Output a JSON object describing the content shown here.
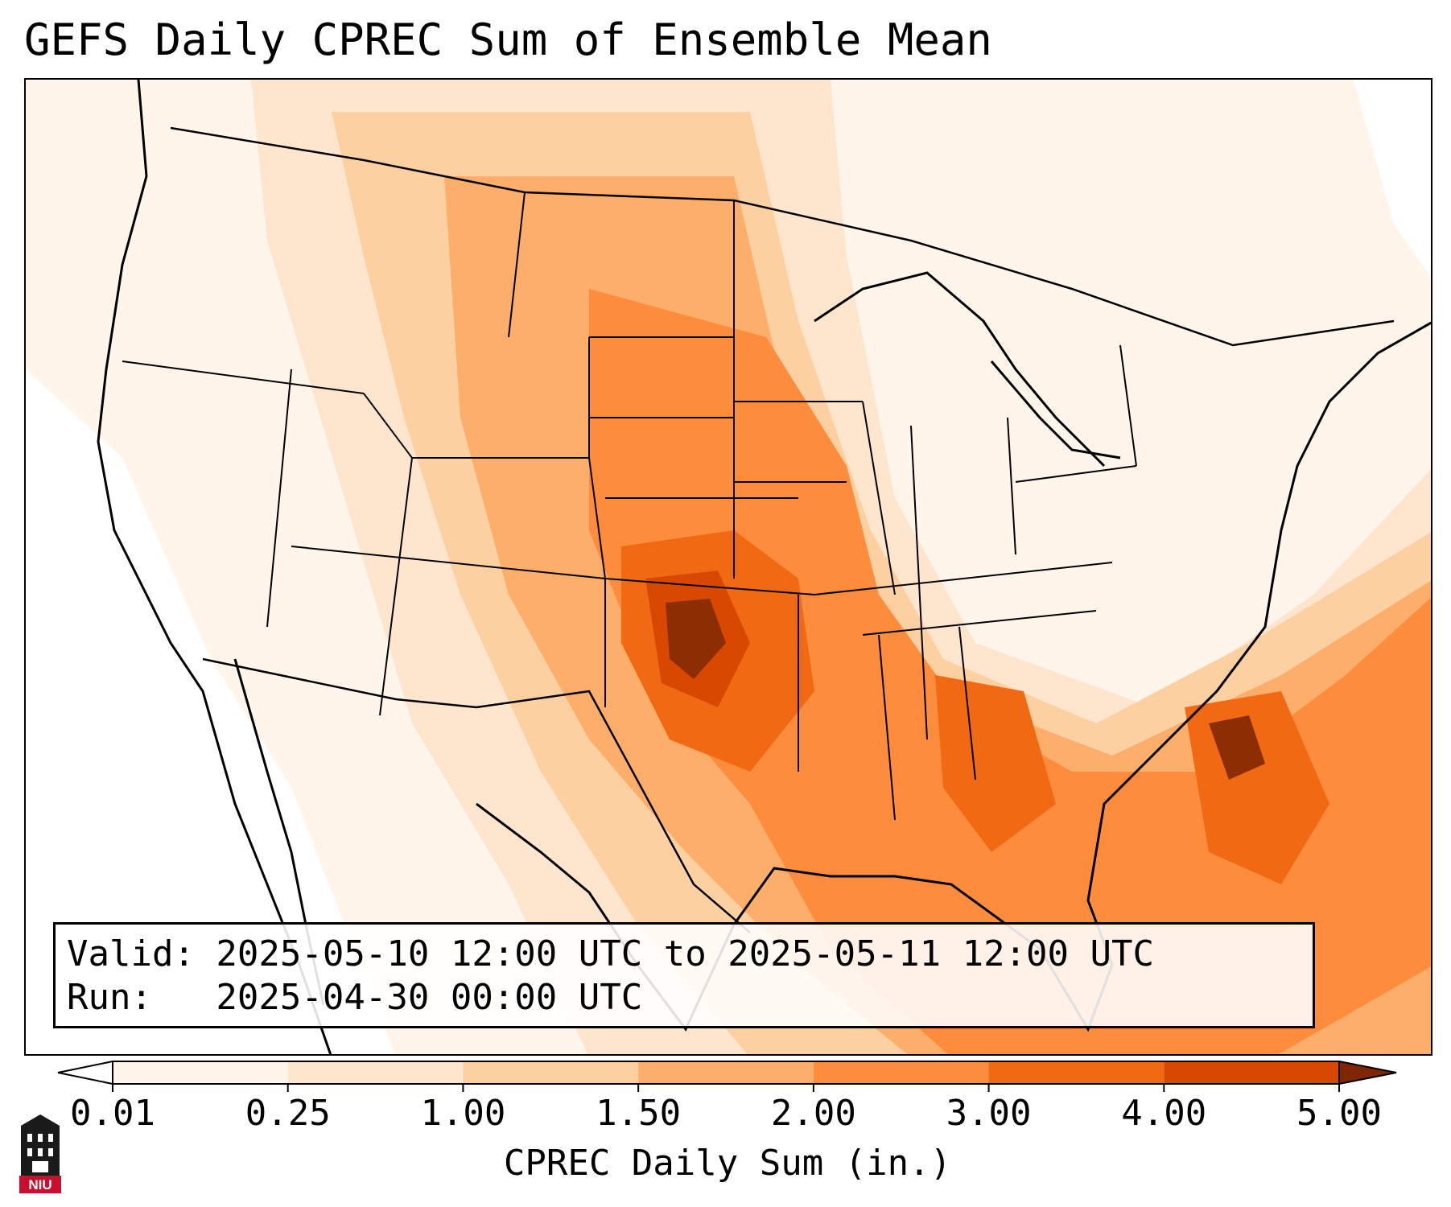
{
  "title": "GEFS Daily CPREC Sum of Ensemble Mean",
  "info": {
    "valid": "Valid: 2025-05-10 12:00 UTC to 2025-05-11 12:00 UTC",
    "run": "Run:   2025-04-30 00:00 UTC"
  },
  "colorbar": {
    "label": "CPREC Daily Sum (in.)",
    "ticks": [
      "0.01",
      "0.25",
      "1.00",
      "1.50",
      "2.00",
      "3.00",
      "4.00",
      "5.00"
    ],
    "colors": [
      "#fff5eb",
      "#fee6ce",
      "#fdd0a2",
      "#fdae6b",
      "#fd8d3c",
      "#f16913",
      "#d94801",
      "#8c2d04"
    ],
    "extend_colors": {
      "under": "#ffffff",
      "over": "#7f2704"
    }
  },
  "logo": {
    "text": "NIU",
    "color": "#c8102e"
  }
}
